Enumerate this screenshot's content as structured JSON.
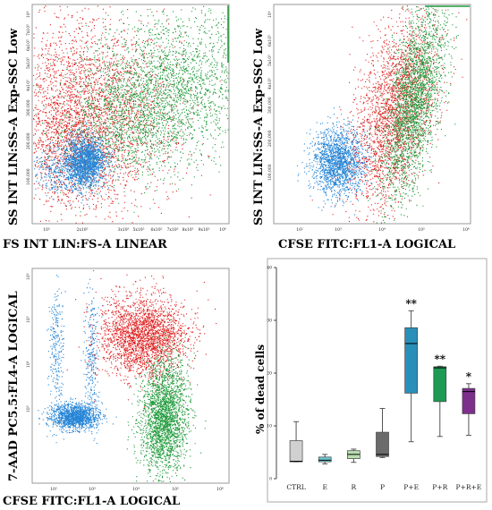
{
  "panels": {
    "p1": {
      "ylabel": "SS INT LIN:SS-A Exp-SSC Low",
      "xlabel": "FS INT LIN:FS-A LINEAR",
      "yticks": [
        "100,000",
        "200,000",
        "300,000",
        "4x10⁵",
        "5x10⁵",
        "6x10⁵",
        "7x10⁵",
        "10⁶"
      ],
      "xticks": [
        "10⁵",
        "2x10⁵",
        "3x10⁵",
        "5x10⁵",
        "6x10⁵",
        "7x10⁵",
        "8x10⁵",
        "9x10⁵",
        "10⁶"
      ]
    },
    "p2": {
      "ylabel": "SS INT LIN:SS-A Exp-SSC Low",
      "xlabel": "CFSE FITC:FL1-A LOGICAL",
      "yticks": [
        "100,000",
        "200,000",
        "300,000",
        "4x10⁵",
        "5x10⁵",
        "6x10⁵",
        "10⁶"
      ],
      "xticks": [
        "10²",
        "10³",
        "10⁴",
        "10⁵",
        "10⁶"
      ]
    },
    "p3": {
      "ylabel": "7-AAD PC5.5:FL4-A LOGICAL",
      "xlabel": "CFSE FITC:FL1-A LOGICAL",
      "yticks": [
        "10³",
        "10⁴",
        "10⁵",
        "10⁶"
      ],
      "xticks": [
        "10²",
        "10³",
        "10⁴",
        "10⁵",
        "10⁶"
      ]
    }
  },
  "colors": {
    "red": "#e02020",
    "green": "#1f9a3a",
    "blue": "#2585d6"
  },
  "chart_data": {
    "type": "box",
    "ylabel": "% of dead cells",
    "xlabel": "",
    "ylim": [
      0,
      40
    ],
    "yticks": [
      "0",
      "10",
      "20",
      "30",
      "40"
    ],
    "categories": [
      "CTRL",
      "E",
      "R",
      "P",
      "P+E",
      "P+R",
      "P+R+E"
    ],
    "boxes": [
      {
        "name": "CTRL",
        "min": 3.2,
        "q1": 3.2,
        "median": 3.3,
        "q3": 7.2,
        "max": 10.8,
        "color": "#d0d0d0",
        "sig": ""
      },
      {
        "name": "E",
        "min": 2.8,
        "q1": 3.2,
        "median": 3.5,
        "q3": 4.1,
        "max": 4.6,
        "color": "#6ec6cf",
        "sig": ""
      },
      {
        "name": "R",
        "min": 3.1,
        "q1": 3.8,
        "median": 4.6,
        "q3": 5.3,
        "max": 5.6,
        "color": "#b9ddb0",
        "sig": ""
      },
      {
        "name": "P",
        "min": 4.0,
        "q1": 4.2,
        "median": 4.6,
        "q3": 8.8,
        "max": 13.3,
        "color": "#6b6b6b",
        "sig": ""
      },
      {
        "name": "P+E",
        "min": 7.0,
        "q1": 16.2,
        "median": 25.6,
        "q3": 28.6,
        "max": 31.8,
        "color": "#2a8fb8",
        "sig": "**"
      },
      {
        "name": "P+R",
        "min": 8.0,
        "q1": 14.6,
        "median": 21.0,
        "q3": 21.2,
        "max": 21.3,
        "color": "#1e9a55",
        "sig": "**"
      },
      {
        "name": "P+R+E",
        "min": 8.2,
        "q1": 12.3,
        "median": 16.5,
        "q3": 17.1,
        "max": 18.0,
        "color": "#7d2f8c",
        "sig": "*"
      }
    ]
  }
}
